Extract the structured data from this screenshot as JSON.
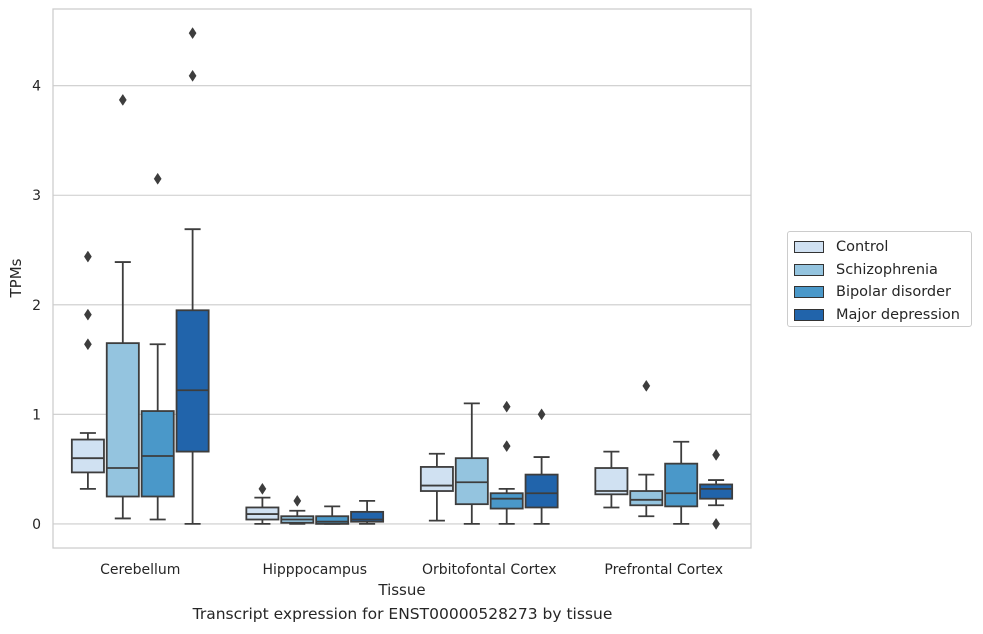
{
  "chart_data": {
    "type": "box",
    "title": "",
    "xlabel": "Tissue",
    "ylabel": "TPMs",
    "caption": "Transcript expression for ENST00000528273 by tissue",
    "ylim": [
      -0.22,
      4.7
    ],
    "yticks": [
      0,
      1,
      2,
      3,
      4
    ],
    "ytick_labels": [
      "0",
      "1",
      "2",
      "3",
      "4"
    ],
    "grid": "horizontal",
    "legend_position": "right",
    "categories": [
      "Cerebellum",
      "Hipppocampus",
      "Orbitofontal Cortex",
      "Prefrontal Cortex"
    ],
    "series": [
      {
        "name": "Control",
        "color": "#d0e1f2",
        "boxes": [
          {
            "whisker_low": 0.32,
            "q1": 0.47,
            "median": 0.6,
            "q3": 0.77,
            "whisker_high": 0.83,
            "outliers": [
              1.64,
              1.91,
              2.44
            ]
          },
          {
            "whisker_low": 0.0,
            "q1": 0.04,
            "median": 0.09,
            "q3": 0.15,
            "whisker_high": 0.24,
            "outliers": [
              0.32
            ]
          },
          {
            "whisker_low": 0.03,
            "q1": 0.3,
            "median": 0.35,
            "q3": 0.52,
            "whisker_high": 0.64,
            "outliers": []
          },
          {
            "whisker_low": 0.15,
            "q1": 0.27,
            "median": 0.3,
            "q3": 0.51,
            "whisker_high": 0.66,
            "outliers": []
          }
        ]
      },
      {
        "name": "Schizophrenia",
        "color": "#94c4df",
        "boxes": [
          {
            "whisker_low": 0.05,
            "q1": 0.25,
            "median": 0.51,
            "q3": 1.65,
            "whisker_high": 2.39,
            "outliers": [
              3.87
            ]
          },
          {
            "whisker_low": 0.0,
            "q1": 0.01,
            "median": 0.04,
            "q3": 0.07,
            "whisker_high": 0.12,
            "outliers": [
              0.21
            ]
          },
          {
            "whisker_low": 0.0,
            "q1": 0.18,
            "median": 0.38,
            "q3": 0.6,
            "whisker_high": 1.1,
            "outliers": []
          },
          {
            "whisker_low": 0.07,
            "q1": 0.17,
            "median": 0.22,
            "q3": 0.3,
            "whisker_high": 0.45,
            "outliers": [
              1.26
            ]
          }
        ]
      },
      {
        "name": "Bipolar disorder",
        "color": "#4a98c9",
        "boxes": [
          {
            "whisker_low": 0.04,
            "q1": 0.25,
            "median": 0.62,
            "q3": 1.03,
            "whisker_high": 1.64,
            "outliers": [
              3.15
            ]
          },
          {
            "whisker_low": 0.0,
            "q1": 0.0,
            "median": 0.02,
            "q3": 0.07,
            "whisker_high": 0.16,
            "outliers": []
          },
          {
            "whisker_low": 0.0,
            "q1": 0.14,
            "median": 0.23,
            "q3": 0.28,
            "whisker_high": 0.32,
            "outliers": [
              0.71,
              1.07
            ]
          },
          {
            "whisker_low": 0.0,
            "q1": 0.16,
            "median": 0.28,
            "q3": 0.55,
            "whisker_high": 0.75,
            "outliers": []
          }
        ]
      },
      {
        "name": "Major depression",
        "color": "#2164ab",
        "boxes": [
          {
            "whisker_low": 0.0,
            "q1": 0.66,
            "median": 1.22,
            "q3": 1.95,
            "whisker_high": 2.69,
            "outliers": [
              4.09,
              4.48
            ]
          },
          {
            "whisker_low": 0.0,
            "q1": 0.02,
            "median": 0.04,
            "q3": 0.11,
            "whisker_high": 0.21,
            "outliers": []
          },
          {
            "whisker_low": 0.0,
            "q1": 0.15,
            "median": 0.28,
            "q3": 0.45,
            "whisker_high": 0.61,
            "outliers": [
              1.0
            ]
          },
          {
            "whisker_low": 0.17,
            "q1": 0.23,
            "median": 0.32,
            "q3": 0.36,
            "whisker_high": 0.4,
            "outliers": [
              0.0,
              0.63
            ]
          }
        ]
      }
    ]
  }
}
